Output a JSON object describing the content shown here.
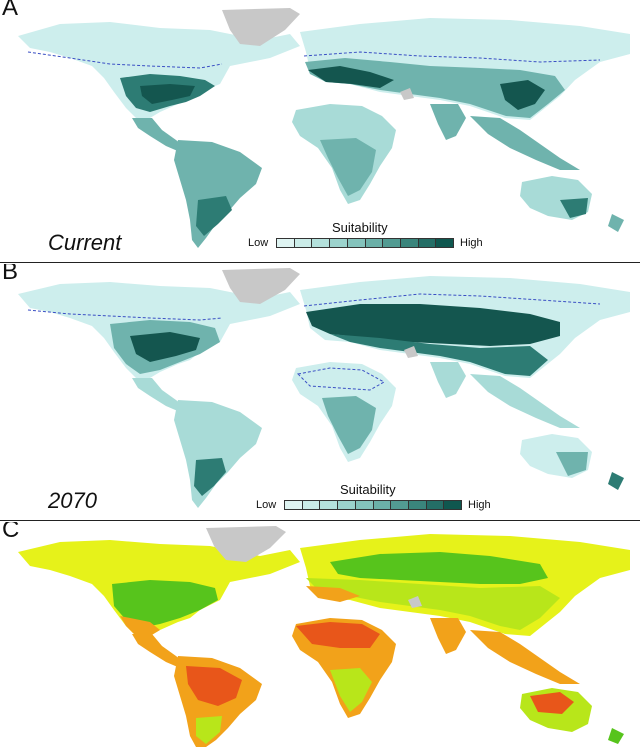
{
  "panels": {
    "a": {
      "letter": "A",
      "scenario": "Current"
    },
    "b": {
      "letter": "B",
      "scenario": "2070"
    },
    "c": {
      "letter": "C"
    }
  },
  "legend": {
    "title": "Suitability",
    "low": "Low",
    "high": "High",
    "steps": [
      "#dff4f2",
      "#cbece8",
      "#b4e1dc",
      "#9cd3cd",
      "#84c3bc",
      "#6bb0a8",
      "#529b92",
      "#3a857c",
      "#246e66",
      "#0f574f"
    ]
  },
  "colors": {
    "ocean": "#ffffff",
    "greenland": "#c8c8c8",
    "teal_lowest": "#cdeeed",
    "teal_low": "#a8dbd7",
    "teal_mid": "#6fb3ad",
    "teal_high": "#2d7c74",
    "teal_highest": "#14564f",
    "boundary_line": "#3a4fc4",
    "c_yellow": "#e6f21a",
    "c_light_green": "#b8e61a",
    "c_green": "#57c41c",
    "c_orange": "#f2a21a",
    "c_red": "#e8561a"
  }
}
